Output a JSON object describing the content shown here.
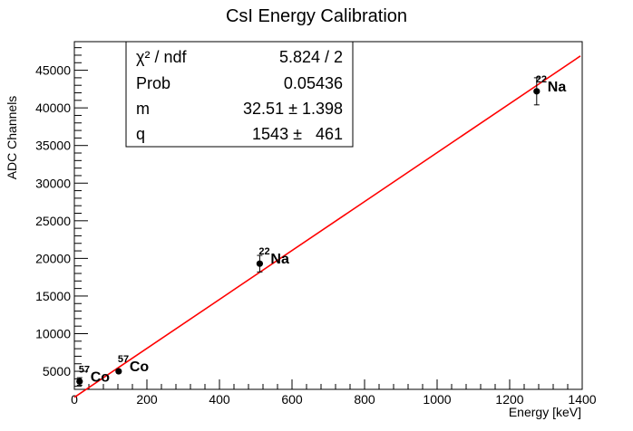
{
  "chart_data": {
    "type": "scatter",
    "title": "CsI Energy Calibration",
    "xlabel": "Energy [keV]",
    "ylabel": "ADC Channels",
    "xlim": [
      0,
      1400
    ],
    "ylim": [
      2600,
      48800
    ],
    "x_ticks": [
      0,
      200,
      400,
      600,
      800,
      1000,
      1200,
      1400
    ],
    "y_ticks": [
      5000,
      10000,
      15000,
      20000,
      25000,
      30000,
      35000,
      40000,
      45000
    ],
    "grid": false,
    "points": [
      {
        "x": 14.4,
        "y": 3650,
        "yerr": 500,
        "label_mass": "57",
        "label_element": "Co"
      },
      {
        "x": 122.1,
        "y": 5000,
        "yerr": 120,
        "label_mass": "57",
        "label_element": "Co"
      },
      {
        "x": 511,
        "y": 19300,
        "yerr": 1100,
        "label_mass": "22",
        "label_element": "Na"
      },
      {
        "x": 1274.5,
        "y": 42200,
        "yerr": 1800,
        "label_mass": "22",
        "label_element": "Na"
      }
    ],
    "fit": {
      "type": "line",
      "slope": 32.51,
      "intercept": 1543,
      "x_range": [
        0,
        1395
      ],
      "color": "#ff0000"
    },
    "colors": {
      "markers": "#000000",
      "fit": "#ff0000"
    },
    "stats_box": {
      "placement": "top-left",
      "rows": [
        {
          "label": "χ² / ndf",
          "value": "5.824 / 2"
        },
        {
          "label": "Prob",
          "value": "0.05436"
        },
        {
          "label": "m",
          "value": "32.51 ± 1.398"
        },
        {
          "label": "q",
          "value": "1543 ±   461"
        }
      ]
    }
  }
}
